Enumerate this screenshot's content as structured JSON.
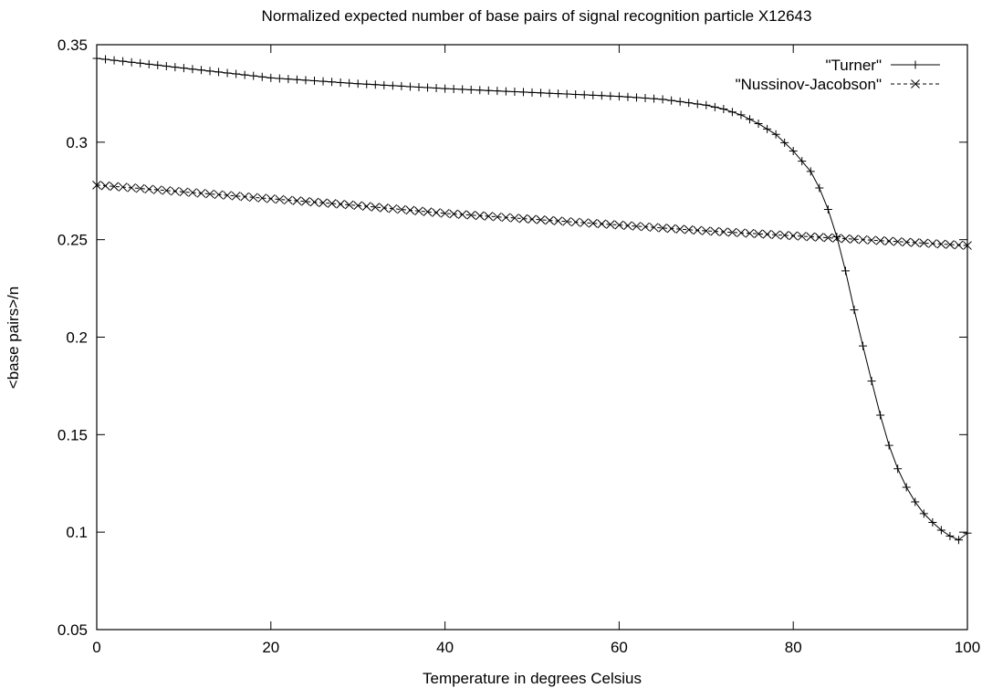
{
  "chart_data": {
    "type": "line",
    "title": "Normalized expected number of base pairs of signal recognition particle X12643",
    "xlabel": "Temperature in degrees Celsius",
    "ylabel": "<base pairs>/n",
    "xlim": [
      0,
      100
    ],
    "ylim": [
      0.05,
      0.35
    ],
    "xticks": [
      0,
      20,
      40,
      60,
      80,
      100
    ],
    "xtick_labels": [
      "0",
      "20",
      "40",
      "60",
      "80",
      "100"
    ],
    "yticks": [
      0.05,
      0.1,
      0.15,
      0.2,
      0.25,
      0.3,
      0.35
    ],
    "ytick_labels": [
      "0.05",
      "0.1",
      "0.15",
      "0.2",
      "0.25",
      "0.3",
      "0.35"
    ],
    "grid": false,
    "legend_position": "top-right",
    "series": [
      {
        "name": "\"Turner\"",
        "marker": "plus",
        "line_style": "solid",
        "x": [
          0,
          10,
          20,
          30,
          40,
          50,
          60,
          65,
          70,
          72,
          74,
          76,
          78,
          80,
          82,
          83,
          84,
          85,
          86,
          87,
          88,
          89,
          90,
          91,
          92,
          93,
          94,
          95,
          96,
          97,
          98,
          99,
          100
        ],
        "y": [
          0.343,
          0.338,
          0.333,
          0.33,
          0.3275,
          0.3255,
          0.3235,
          0.322,
          0.319,
          0.317,
          0.314,
          0.3095,
          0.304,
          0.2955,
          0.285,
          0.2765,
          0.2655,
          0.2515,
          0.234,
          0.214,
          0.1955,
          0.1775,
          0.16,
          0.1445,
          0.1325,
          0.123,
          0.1155,
          0.1095,
          0.105,
          0.101,
          0.098,
          0.096,
          0.0995
        ]
      },
      {
        "name": "\"Nussinov-Jacobson\"",
        "marker": "x",
        "line_style": "dashed",
        "x": [
          0,
          10,
          20,
          30,
          40,
          50,
          60,
          70,
          80,
          90,
          100
        ],
        "y": [
          0.278,
          0.2745,
          0.271,
          0.2675,
          0.2635,
          0.2605,
          0.2575,
          0.2545,
          0.252,
          0.2495,
          0.247
        ]
      }
    ]
  }
}
